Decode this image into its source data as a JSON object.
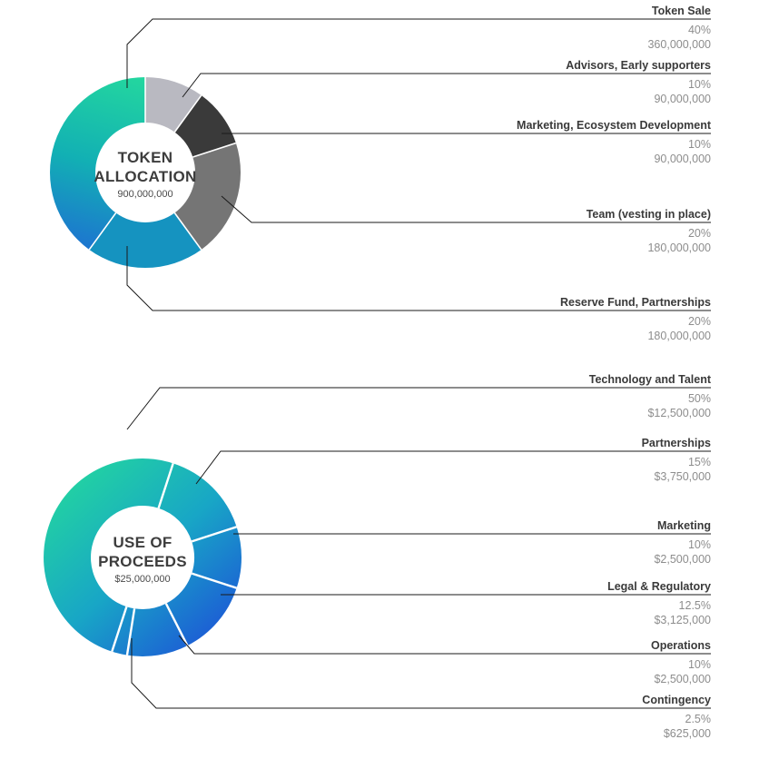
{
  "page": {
    "background": "#ffffff"
  },
  "chart_data": [
    {
      "type": "pie",
      "variant": "donut",
      "title": "TOKEN ALLOCATION",
      "total": "900,000,000",
      "legend_position": "right",
      "segments": [
        {
          "label": "Token Sale",
          "pct": "40%",
          "value": "360,000,000",
          "percent": 40,
          "fill": "gradient-green-blue-1"
        },
        {
          "label": "Advisors, Early supporters",
          "pct": "10%",
          "value": "90,000,000",
          "percent": 10,
          "fill": "#b9b9c1"
        },
        {
          "label": "Marketing, Ecosystem Development",
          "pct": "10%",
          "value": "90,000,000",
          "percent": 10,
          "fill": "#3a3a3a"
        },
        {
          "label": "Team (vesting in place)",
          "pct": "20%",
          "value": "180,000,000",
          "percent": 20,
          "fill": "#757575"
        },
        {
          "label": "Reserve Fund, Partnerships",
          "pct": "20%",
          "value": "180,000,000",
          "percent": 20,
          "fill": "#1593c0"
        }
      ]
    },
    {
      "type": "pie",
      "variant": "donut",
      "title": "USE OF PROCEEDS",
      "total": "$25,000,000",
      "legend_position": "right",
      "segments": [
        {
          "label": "Technology and Talent",
          "pct": "50%",
          "value": "$12,500,000",
          "percent": 50,
          "fill": "gradient-green-blue-2"
        },
        {
          "label": "Partnerships",
          "pct": "15%",
          "value": "$3,750,000",
          "percent": 15,
          "fill": "gradient-green-blue-2"
        },
        {
          "label": "Marketing",
          "pct": "10%",
          "value": "$2,500,000",
          "percent": 10,
          "fill": "gradient-green-blue-2"
        },
        {
          "label": "Legal & Regulatory",
          "pct": "12.5%",
          "value": "$3,125,000",
          "percent": 12.5,
          "fill": "gradient-green-blue-2"
        },
        {
          "label": "Operations",
          "pct": "10%",
          "value": "$2,500,000",
          "percent": 10,
          "fill": "gradient-green-blue-2"
        },
        {
          "label": "Contingency",
          "pct": "2.5%",
          "value": "$625,000",
          "percent": 2.5,
          "fill": "gradient-green-blue-2"
        }
      ]
    }
  ],
  "colors": {
    "gradient-green-blue-1": [
      "#23d69f",
      "#12b0b4",
      "#1e6ed3"
    ],
    "gradient-green-blue-2": [
      "#23d69f",
      "#18a6c6",
      "#1d4fd8"
    ],
    "callout_line": "#1a1a1a",
    "separator": "#ffffff",
    "legend_title": "#3a3a3a",
    "legend_value": "#8d8d8d",
    "center_title": "#3d3d3d"
  }
}
